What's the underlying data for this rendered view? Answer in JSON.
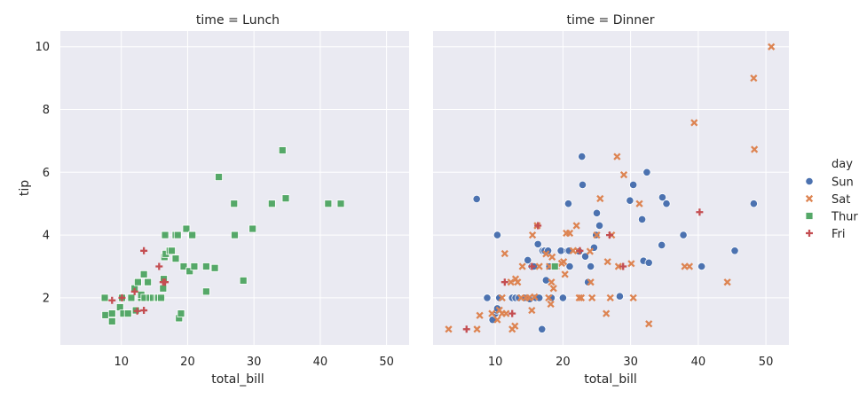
{
  "chart_data": {
    "type": "scatter",
    "facet_titles": [
      "time = Lunch",
      "time = Dinner"
    ],
    "xlabel": "total_bill",
    "ylabel": "tip",
    "xlim": [
      0.8,
      53.4
    ],
    "ylim": [
      0.5,
      10.5
    ],
    "xticks": [
      10,
      20,
      30,
      40,
      50
    ],
    "yticks": [
      2,
      4,
      6,
      8,
      10
    ],
    "grid": true,
    "legend": {
      "title": "day",
      "placement": "right",
      "entries": [
        {
          "name": "Sun",
          "color": "#4c72b0",
          "marker": "circle"
        },
        {
          "name": "Sat",
          "color": "#dd8452",
          "marker": "x"
        },
        {
          "name": "Thur",
          "color": "#55a868",
          "marker": "square"
        },
        {
          "name": "Fri",
          "color": "#c44e52",
          "marker": "plus"
        }
      ]
    },
    "panels": [
      {
        "title": "time = Lunch",
        "series": [
          {
            "name": "Thur",
            "points": [
              [
                7.5,
                2.0
              ],
              [
                7.6,
                1.45
              ],
              [
                8.6,
                1.25
              ],
              [
                8.6,
                1.5
              ],
              [
                9.8,
                1.7
              ],
              [
                10.1,
                2.0
              ],
              [
                10.3,
                1.5
              ],
              [
                11.0,
                1.5
              ],
              [
                11.5,
                2.0
              ],
              [
                12.0,
                2.3
              ],
              [
                12.2,
                1.6
              ],
              [
                12.5,
                2.5
              ],
              [
                13.0,
                2.0
              ],
              [
                13.0,
                2.1
              ],
              [
                13.4,
                2.75
              ],
              [
                13.5,
                2.0
              ],
              [
                14.0,
                2.5
              ],
              [
                14.3,
                2.0
              ],
              [
                14.8,
                2.0
              ],
              [
                15.4,
                2.0
              ],
              [
                15.6,
                2.0
              ],
              [
                16.0,
                2.0
              ],
              [
                16.3,
                2.3
              ],
              [
                16.4,
                2.6
              ],
              [
                16.5,
                3.3
              ],
              [
                16.6,
                4.0
              ],
              [
                16.7,
                3.4
              ],
              [
                17.3,
                3.5
              ],
              [
                17.6,
                3.5
              ],
              [
                18.2,
                3.25
              ],
              [
                18.2,
                4.0
              ],
              [
                18.5,
                4.0
              ],
              [
                18.7,
                1.35
              ],
              [
                19.0,
                1.5
              ],
              [
                19.4,
                3.0
              ],
              [
                19.8,
                4.2
              ],
              [
                20.3,
                2.85
              ],
              [
                20.7,
                4.0
              ],
              [
                21.0,
                3.0
              ],
              [
                22.8,
                2.2
              ],
              [
                22.8,
                3.0
              ],
              [
                24.1,
                2.95
              ],
              [
                24.7,
                5.85
              ],
              [
                27.0,
                5.0
              ],
              [
                27.1,
                4.0
              ],
              [
                28.4,
                2.55
              ],
              [
                29.8,
                4.2
              ],
              [
                32.7,
                5.0
              ],
              [
                34.3,
                6.7
              ],
              [
                34.8,
                5.17
              ],
              [
                41.2,
                5.0
              ],
              [
                43.1,
                5.0
              ]
            ]
          },
          {
            "name": "Fri",
            "points": [
              [
                8.6,
                1.92
              ],
              [
                10.1,
                2.0
              ],
              [
                12.0,
                2.2
              ],
              [
                12.4,
                1.58
              ],
              [
                13.4,
                3.5
              ],
              [
                13.4,
                1.6
              ],
              [
                15.7,
                3.0
              ],
              [
                16.3,
                2.5
              ],
              [
                16.6,
                2.5
              ]
            ]
          }
        ]
      },
      {
        "title": "time = Dinner",
        "series": [
          {
            "name": "Sun",
            "points": [
              [
                7.25,
                5.15
              ],
              [
                8.8,
                2.0
              ],
              [
                9.6,
                1.3
              ],
              [
                10.0,
                1.5
              ],
              [
                10.2,
                1.6
              ],
              [
                10.3,
                4.0
              ],
              [
                10.3,
                1.66
              ],
              [
                10.6,
                2.0
              ],
              [
                12.5,
                2.0
              ],
              [
                13.0,
                2.0
              ],
              [
                13.5,
                2.0
              ],
              [
                14.1,
                2.0
              ],
              [
                14.3,
                2.0
              ],
              [
                14.8,
                3.2
              ],
              [
                15.1,
                1.96
              ],
              [
                15.4,
                3.0
              ],
              [
                15.7,
                3.0
              ],
              [
                16.0,
                2.0
              ],
              [
                16.3,
                3.71
              ],
              [
                16.5,
                2.0
              ],
              [
                16.9,
                1.0
              ],
              [
                17.0,
                3.5
              ],
              [
                17.3,
                3.5
              ],
              [
                17.5,
                2.56
              ],
              [
                17.8,
                3.5
              ],
              [
                18.0,
                3.0
              ],
              [
                18.3,
                2.0
              ],
              [
                19.7,
                3.5
              ],
              [
                20.0,
                2.0
              ],
              [
                20.7,
                3.5
              ],
              [
                20.8,
                5.0
              ],
              [
                20.9,
                3.5
              ],
              [
                21.0,
                3.0
              ],
              [
                22.4,
                3.48
              ],
              [
                22.8,
                6.5
              ],
              [
                22.9,
                5.6
              ],
              [
                23.3,
                3.32
              ],
              [
                23.7,
                2.5
              ],
              [
                24.1,
                3.0
              ],
              [
                24.6,
                3.6
              ],
              [
                24.9,
                4.0
              ],
              [
                25.0,
                4.7
              ],
              [
                25.4,
                4.3
              ],
              [
                28.4,
                2.05
              ],
              [
                29.9,
                5.1
              ],
              [
                30.4,
                5.6
              ],
              [
                31.7,
                4.5
              ],
              [
                31.9,
                3.18
              ],
              [
                32.4,
                6.0
              ],
              [
                32.7,
                3.12
              ],
              [
                34.6,
                3.68
              ],
              [
                34.7,
                5.2
              ],
              [
                35.3,
                5.0
              ],
              [
                37.8,
                4.0
              ],
              [
                40.5,
                3.0
              ],
              [
                45.4,
                3.5
              ],
              [
                48.2,
                5.0
              ]
            ]
          },
          {
            "name": "Sat",
            "points": [
              [
                3.1,
                1.0
              ],
              [
                7.3,
                1.0
              ],
              [
                7.7,
                1.44
              ],
              [
                9.5,
                1.5
              ],
              [
                10.3,
                1.3
              ],
              [
                10.6,
                1.61
              ],
              [
                11.0,
                1.5
              ],
              [
                11.0,
                2.0
              ],
              [
                11.4,
                3.41
              ],
              [
                11.6,
                1.5
              ],
              [
                12.3,
                2.5
              ],
              [
                12.5,
                1.0
              ],
              [
                12.9,
                1.1
              ],
              [
                13.0,
                2.6
              ],
              [
                13.3,
                2.5
              ],
              [
                13.8,
                2.0
              ],
              [
                14.0,
                3.0
              ],
              [
                14.5,
                2.0
              ],
              [
                15.0,
                2.0
              ],
              [
                15.4,
                1.6
              ],
              [
                15.5,
                4.0
              ],
              [
                15.8,
                2.03
              ],
              [
                16.2,
                4.3
              ],
              [
                16.5,
                3.0
              ],
              [
                17.5,
                3.4
              ],
              [
                17.9,
                2.0
              ],
              [
                18.0,
                3.0
              ],
              [
                18.2,
                1.8
              ],
              [
                18.3,
                2.5
              ],
              [
                18.4,
                3.3
              ],
              [
                18.6,
                2.3
              ],
              [
                19.0,
                3.0
              ],
              [
                19.8,
                3.1
              ],
              [
                20.1,
                3.15
              ],
              [
                20.3,
                2.75
              ],
              [
                20.5,
                4.06
              ],
              [
                21.0,
                4.06
              ],
              [
                21.5,
                3.5
              ],
              [
                22.0,
                4.3
              ],
              [
                22.2,
                3.5
              ],
              [
                22.4,
                2.0
              ],
              [
                22.7,
                2.0
              ],
              [
                24.0,
                3.48
              ],
              [
                24.1,
                2.5
              ],
              [
                24.3,
                2.0
              ],
              [
                25.0,
                4.0
              ],
              [
                25.5,
                5.16
              ],
              [
                26.4,
                1.5
              ],
              [
                26.6,
                3.15
              ],
              [
                27.0,
                2.0
              ],
              [
                27.2,
                4.0
              ],
              [
                28.0,
                6.5
              ],
              [
                28.2,
                3.0
              ],
              [
                29.0,
                5.92
              ],
              [
                30.1,
                3.09
              ],
              [
                30.4,
                2.0
              ],
              [
                31.3,
                5.0
              ],
              [
                32.7,
                1.17
              ],
              [
                38.0,
                3.0
              ],
              [
                38.7,
                3.0
              ],
              [
                39.4,
                7.58
              ],
              [
                44.3,
                2.5
              ],
              [
                48.2,
                9.0
              ],
              [
                48.3,
                6.73
              ],
              [
                50.8,
                10.0
              ]
            ]
          },
          {
            "name": "Thur",
            "points": [
              [
                18.8,
                3.0
              ]
            ]
          },
          {
            "name": "Fri",
            "points": [
              [
                5.75,
                1.0
              ],
              [
                11.4,
                2.5
              ],
              [
                12.5,
                1.5
              ],
              [
                15.4,
                3.0
              ],
              [
                16.3,
                4.3
              ],
              [
                22.5,
                3.5
              ],
              [
                26.9,
                4.0
              ],
              [
                28.9,
                3.0
              ],
              [
                40.2,
                4.73
              ]
            ]
          }
        ]
      }
    ]
  }
}
